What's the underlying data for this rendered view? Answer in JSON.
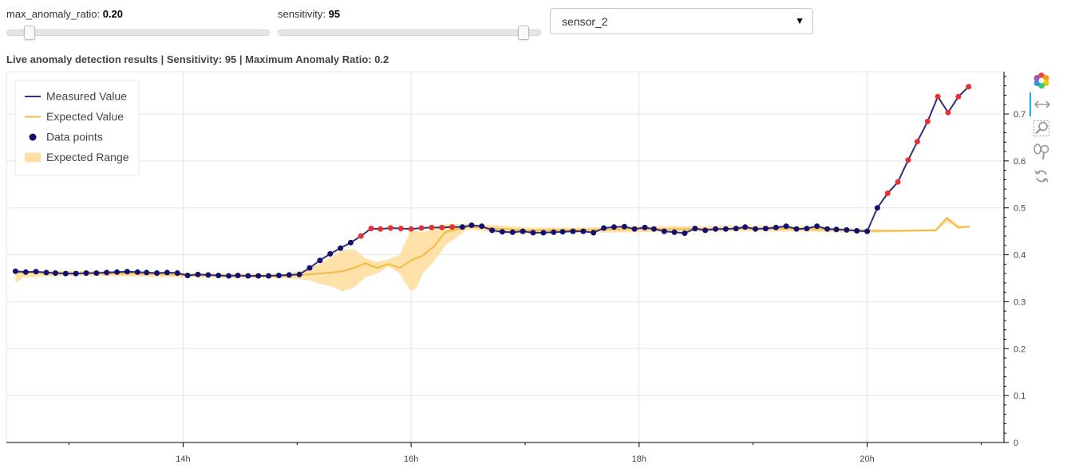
{
  "controls": {
    "ratio_slider": {
      "label": "max_anomaly_ratio:",
      "value_text": "0.20",
      "value": 0.2,
      "min": 0.0,
      "max": 3.0
    },
    "sensitivity_slider": {
      "label": "sensitivity:",
      "value_text": "95",
      "value": 95,
      "min": 0,
      "max": 100
    },
    "sensor_select": {
      "selected": "sensor_2"
    }
  },
  "colors": {
    "measured": "#2f2f87",
    "expected": "#f5b942",
    "range": "#fdd88c",
    "point": "#12126e",
    "anomaly": "#e8312c"
  },
  "toolbar": [
    "bokeh-logo-icon",
    "pan-icon",
    "box-zoom-icon",
    "wheel-zoom-icon",
    "reset-icon"
  ],
  "chart_data": {
    "type": "line",
    "title": "Live anomaly detection results | Sensitivity: 95 | Maximum Anomaly Ratio: 0.2",
    "xlabel": "",
    "ylabel": "",
    "x_unit": "hour of day",
    "xlim": [
      12.45,
      21.2
    ],
    "ylim": [
      0,
      0.79
    ],
    "x_ticks": [
      {
        "x": 14,
        "label": "14h"
      },
      {
        "x": 16,
        "label": "16h"
      },
      {
        "x": 18,
        "label": "18h"
      },
      {
        "x": 20,
        "label": "20h"
      }
    ],
    "y_ticks": [
      {
        "y": 0,
        "label": "0"
      },
      {
        "y": 0.1,
        "label": "0.1"
      },
      {
        "y": 0.2,
        "label": "0.2"
      },
      {
        "y": 0.3,
        "label": "0.3"
      },
      {
        "y": 0.4,
        "label": "0.4"
      },
      {
        "y": 0.5,
        "label": "0.5"
      },
      {
        "y": 0.6,
        "label": "0.6"
      },
      {
        "y": 0.7,
        "label": "0.7"
      }
    ],
    "grid": true,
    "y_axis_side": "right",
    "legend_position": "top-left",
    "legend": [
      {
        "label": "Measured Value",
        "kind": "line",
        "color": "#2f2f87"
      },
      {
        "label": "Expected Value",
        "kind": "line",
        "color": "#f5b942"
      },
      {
        "label": "Data points",
        "kind": "dot",
        "color": "#12126e"
      },
      {
        "label": "Expected Range",
        "kind": "box",
        "color": "#fdd88c"
      }
    ],
    "series": [
      {
        "name": "Measured Value",
        "x": [
          12.53,
          12.62,
          12.71,
          12.8,
          12.88,
          12.97,
          13.06,
          13.15,
          13.24,
          13.33,
          13.42,
          13.51,
          13.6,
          13.68,
          13.77,
          13.86,
          13.95,
          14.04,
          14.13,
          14.22,
          14.31,
          14.4,
          14.48,
          14.57,
          14.66,
          14.75,
          14.84,
          14.93,
          15.02,
          15.11,
          15.2,
          15.29,
          15.38,
          15.47,
          15.56,
          15.65,
          15.73,
          15.82,
          15.91,
          16.0,
          16.09,
          16.18,
          16.27,
          16.36,
          16.45,
          16.53,
          16.62,
          16.71,
          16.8,
          16.89,
          16.98,
          17.07,
          17.16,
          17.25,
          17.33,
          17.42,
          17.51,
          17.6,
          17.69,
          17.78,
          17.87,
          17.96,
          18.05,
          18.13,
          18.22,
          18.31,
          18.4,
          18.49,
          18.58,
          18.67,
          18.76,
          18.85,
          18.93,
          19.02,
          19.11,
          19.2,
          19.29,
          19.38,
          19.47,
          19.56,
          19.65,
          19.73,
          19.82,
          19.91,
          20.0,
          20.09,
          20.18,
          20.27,
          20.36,
          20.44,
          20.53,
          20.62,
          20.71,
          20.8,
          20.89
        ],
        "values": [
          0.365,
          0.363,
          0.364,
          0.362,
          0.361,
          0.36,
          0.36,
          0.361,
          0.361,
          0.362,
          0.363,
          0.364,
          0.363,
          0.362,
          0.361,
          0.362,
          0.361,
          0.356,
          0.358,
          0.357,
          0.356,
          0.355,
          0.356,
          0.355,
          0.355,
          0.355,
          0.356,
          0.357,
          0.358,
          0.372,
          0.388,
          0.402,
          0.414,
          0.426,
          0.44,
          0.456,
          0.455,
          0.457,
          0.456,
          0.455,
          0.457,
          0.458,
          0.458,
          0.459,
          0.459,
          0.463,
          0.461,
          0.452,
          0.449,
          0.448,
          0.45,
          0.447,
          0.447,
          0.448,
          0.449,
          0.45,
          0.45,
          0.447,
          0.457,
          0.459,
          0.46,
          0.455,
          0.458,
          0.455,
          0.45,
          0.448,
          0.446,
          0.456,
          0.452,
          0.455,
          0.455,
          0.456,
          0.459,
          0.455,
          0.456,
          0.458,
          0.461,
          0.455,
          0.456,
          0.461,
          0.455,
          0.454,
          0.453,
          0.451,
          0.45,
          0.5,
          0.531,
          0.555,
          0.602,
          0.641,
          0.684,
          0.737,
          0.703,
          0.737,
          0.758
        ]
      },
      {
        "name": "Expected Value",
        "x": [
          12.53,
          13.0,
          13.5,
          14.0,
          14.5,
          14.9,
          15.1,
          15.2,
          15.3,
          15.4,
          15.5,
          15.6,
          15.7,
          15.8,
          15.9,
          16.0,
          16.1,
          16.2,
          16.3,
          16.5,
          17.0,
          17.5,
          18.0,
          18.5,
          19.0,
          19.5,
          20.0,
          20.3,
          20.6,
          20.7,
          20.8,
          20.9
        ],
        "values": [
          0.362,
          0.361,
          0.36,
          0.357,
          0.355,
          0.355,
          0.358,
          0.36,
          0.362,
          0.365,
          0.372,
          0.382,
          0.372,
          0.38,
          0.372,
          0.388,
          0.398,
          0.418,
          0.448,
          0.46,
          0.452,
          0.453,
          0.455,
          0.455,
          0.456,
          0.455,
          0.451,
          0.451,
          0.452,
          0.478,
          0.458,
          0.46
        ]
      },
      {
        "name": "Expected Range",
        "x": [
          12.53,
          12.6,
          13.0,
          13.5,
          14.0,
          14.5,
          14.9,
          15.1,
          15.2,
          15.3,
          15.4,
          15.5,
          15.6,
          15.7,
          15.8,
          15.9,
          16.0,
          16.05,
          16.1,
          16.2,
          16.3,
          16.5,
          16.8,
          17.0,
          17.5,
          18.0,
          18.5,
          19.0,
          19.5,
          20.0,
          20.3,
          20.6,
          20.7,
          20.8,
          20.9
        ],
        "lower": [
          0.34,
          0.352,
          0.355,
          0.354,
          0.352,
          0.35,
          0.35,
          0.346,
          0.338,
          0.333,
          0.322,
          0.33,
          0.352,
          0.36,
          0.375,
          0.36,
          0.322,
          0.33,
          0.36,
          0.385,
          0.42,
          0.455,
          0.445,
          0.445,
          0.447,
          0.448,
          0.449,
          0.45,
          0.449,
          0.447,
          0.449,
          0.45,
          0.47,
          0.456,
          0.458
        ],
        "upper": [
          0.368,
          0.366,
          0.366,
          0.365,
          0.362,
          0.36,
          0.36,
          0.37,
          0.382,
          0.395,
          0.41,
          0.412,
          0.392,
          0.385,
          0.39,
          0.4,
          0.455,
          0.45,
          0.448,
          0.455,
          0.465,
          0.465,
          0.462,
          0.458,
          0.458,
          0.461,
          0.461,
          0.462,
          0.461,
          0.455,
          0.453,
          0.455,
          0.482,
          0.462,
          0.462
        ]
      },
      {
        "name": "Data points",
        "anomaly_indices": [
          34,
          35,
          36,
          37,
          38,
          39,
          40,
          41,
          42,
          43,
          86,
          87,
          88,
          89,
          90,
          91,
          92,
          93,
          94
        ]
      }
    ]
  }
}
